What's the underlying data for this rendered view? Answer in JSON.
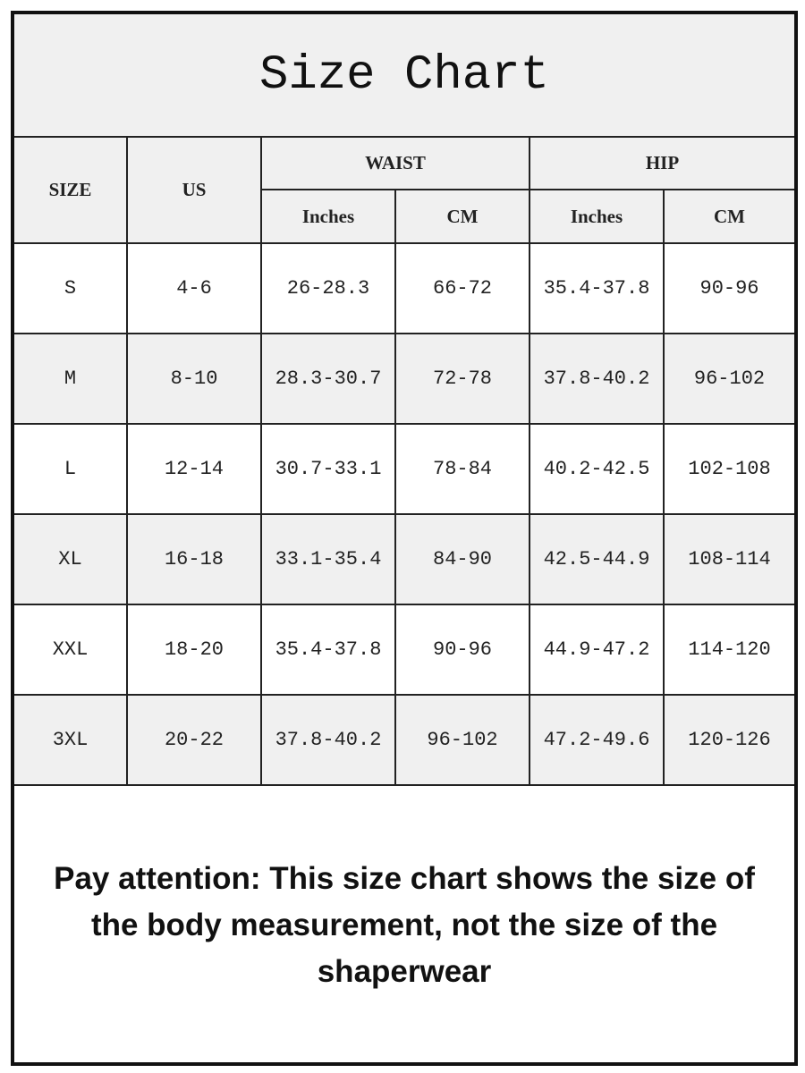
{
  "title": "Size Chart",
  "headers": {
    "size": "SIZE",
    "us": "US",
    "waist": "WAIST",
    "hip": "HIP",
    "inches": "Inches",
    "cm": "CM"
  },
  "rows": [
    {
      "size": "S",
      "us": "4-6",
      "waist_in": "26-28.3",
      "waist_cm": "66-72",
      "hip_in": "35.4-37.8",
      "hip_cm": "90-96"
    },
    {
      "size": "M",
      "us": "8-10",
      "waist_in": "28.3-30.7",
      "waist_cm": "72-78",
      "hip_in": "37.8-40.2",
      "hip_cm": "96-102"
    },
    {
      "size": "L",
      "us": "12-14",
      "waist_in": "30.7-33.1",
      "waist_cm": "78-84",
      "hip_in": "40.2-42.5",
      "hip_cm": "102-108"
    },
    {
      "size": "XL",
      "us": "16-18",
      "waist_in": "33.1-35.4",
      "waist_cm": "84-90",
      "hip_in": "42.5-44.9",
      "hip_cm": "108-114"
    },
    {
      "size": "XXL",
      "us": "18-20",
      "waist_in": "35.4-37.8",
      "waist_cm": "90-96",
      "hip_in": "44.9-47.2",
      "hip_cm": "114-120"
    },
    {
      "size": "3XL",
      "us": "20-22",
      "waist_in": "37.8-40.2",
      "waist_cm": "96-102",
      "hip_in": "47.2-49.6",
      "hip_cm": "120-126"
    }
  ],
  "note": "Pay attention:  This size chart shows the size of the body measurement,  not the size of the shaperwear",
  "colors": {
    "header_bg": "#f0f0f0",
    "row_alt_bg": "#f0f0f0",
    "border": "#111111"
  }
}
